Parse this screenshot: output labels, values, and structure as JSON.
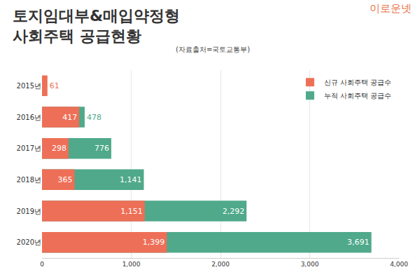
{
  "chart_data": {
    "type": "bar",
    "orientation": "horizontal",
    "stacked": false,
    "title": "토지임대부&매입약정형\n사회주택 공급현황",
    "subtitle": "(자료출처=국토교통부)",
    "annotations": [
      {
        "text": "이로운넷"
      }
    ],
    "categories": [
      "2015년",
      "2016년",
      "2017년",
      "2018년",
      "2019년",
      "2020년"
    ],
    "series": [
      {
        "name": "신규 사회주택 공급수",
        "color": "#ee6f57",
        "values": [
          61,
          417,
          298,
          365,
          1151,
          1399
        ],
        "value_labels": [
          "61",
          "417",
          "298",
          "365",
          "1,151",
          "1,399"
        ]
      },
      {
        "name": "누적 사회주택 공급수",
        "color": "#4fa98a",
        "values": [
          null,
          478,
          776,
          1141,
          2292,
          3691
        ],
        "value_labels": [
          null,
          "478",
          "776",
          "1,141",
          "2,292",
          "3,691"
        ]
      }
    ],
    "xlim": [
      0,
      4000
    ],
    "xticks": [
      0,
      {
        "value": 1000,
        "label": "1,000"
      },
      {
        "value": 2000,
        "label": "2,000"
      },
      {
        "value": 3000,
        "label": "3,000"
      },
      {
        "value": 4000,
        "label": "4,000"
      }
    ],
    "grid": true,
    "legend": "upper right",
    "data_labels": true
  }
}
